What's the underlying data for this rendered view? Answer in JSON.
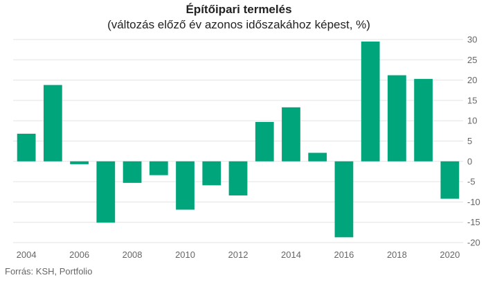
{
  "chart_data": {
    "type": "bar",
    "title": "Építőipari termelés",
    "subtitle": "(változás előző év azonos időszakához képest, %)",
    "xlabel": "",
    "ylabel": "",
    "categories": [
      "2004",
      "2005",
      "2006",
      "2007",
      "2008",
      "2009",
      "2010",
      "2011",
      "2012",
      "2013",
      "2014",
      "2015",
      "2016",
      "2017",
      "2018",
      "2019",
      "2020"
    ],
    "values": [
      6.8,
      18.8,
      -0.7,
      -15.1,
      -5.3,
      -3.4,
      -11.9,
      -5.9,
      -8.4,
      9.7,
      13.3,
      2.1,
      -18.7,
      29.5,
      21.2,
      20.3,
      -9.2
    ],
    "x_tick_labels": [
      "2004",
      "2006",
      "2008",
      "2010",
      "2012",
      "2014",
      "2016",
      "2018",
      "2020"
    ],
    "y_ticks": [
      -20,
      -15,
      -10,
      -5,
      0,
      5,
      10,
      15,
      20,
      25,
      30
    ],
    "y_tick_labels": [
      "-20",
      "-15",
      "-10",
      "-5",
      "0",
      "5",
      "10",
      "15",
      "20",
      "25",
      "30"
    ],
    "ylim": [
      -20,
      30
    ],
    "y_axis_side": "right",
    "grid": true,
    "bar_color": "#00a57b",
    "grid_color": "#e3e3e3"
  },
  "source": "Forrás: KSH, Portfolio"
}
